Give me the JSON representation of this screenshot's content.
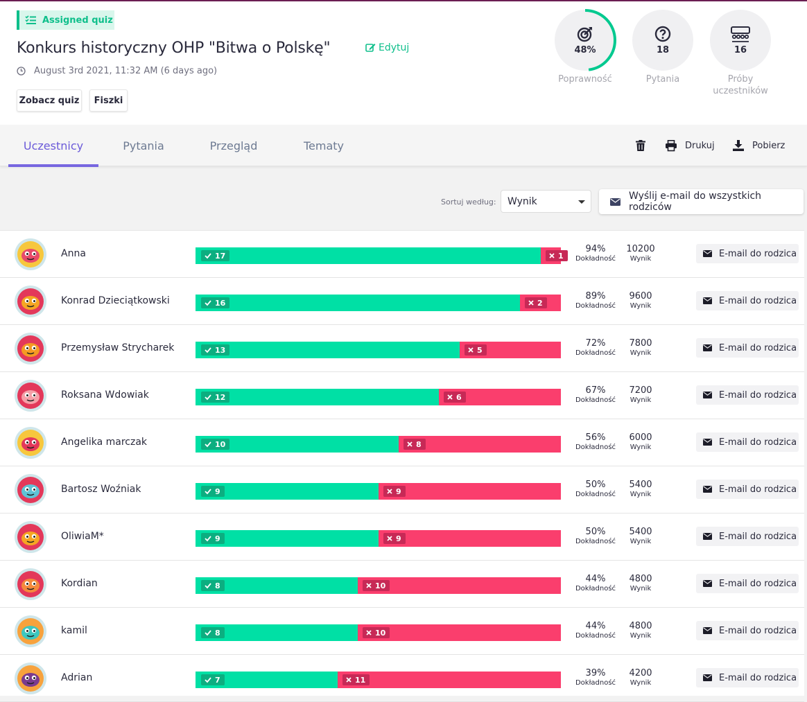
{
  "header": {
    "badge": "Assigned quiz",
    "title": "Konkurs historyczny OHP \"Bitwa o Polskę\"",
    "edit_label": "Edytuj",
    "date": "August 3rd 2021, 11:32 AM (6 days ago)",
    "btn_quiz": "Zobacz quiz",
    "btn_cards": "Fiszki"
  },
  "stats": {
    "accuracy": {
      "value": "48%",
      "fraction": 0.48,
      "label": "Poprawność",
      "color": "#00c98f"
    },
    "questions": {
      "value": "18",
      "label": "Pytania"
    },
    "attempts": {
      "value": "16",
      "label": "Próby uczestników"
    }
  },
  "tabs": [
    "Uczestnicy",
    "Pytania",
    "Przegląd",
    "Tematy"
  ],
  "tools": {
    "print": "Drukuj",
    "download": "Pobierz"
  },
  "sort": {
    "label": "Sortuj według:",
    "value": "Wynik"
  },
  "mail_all": "Wyślij e-mail do wszystkich rodziców",
  "labels": {
    "accuracy": "Dokładność",
    "score": "Wynik",
    "email": "E-mail do rodzica"
  },
  "colors": {
    "correct": "#00e0a5",
    "wrong": "#fa3e6d",
    "accent": "#7766e0",
    "brand_green": "#0ebf8b"
  },
  "participants": [
    {
      "name": "Anna",
      "correct": 17,
      "wrong": 1,
      "accuracy": "94%",
      "score": "10200",
      "avatar": "monster-blue-icon",
      "avatar_bg": "#f7c73d",
      "avatar_fg": "#e84b6a"
    },
    {
      "name": "Konrad Dzieciątkowski",
      "correct": 16,
      "wrong": 2,
      "accuracy": "89%",
      "score": "9600",
      "avatar": "monster-robot-icon",
      "avatar_bg": "#e3385a",
      "avatar_fg": "#f5a623"
    },
    {
      "name": "Przemysław Strycharek",
      "correct": 13,
      "wrong": 5,
      "accuracy": "72%",
      "score": "7800",
      "avatar": "monster-orange-icon",
      "avatar_bg": "#e3385a",
      "avatar_fg": "#f59a23"
    },
    {
      "name": "Roksana Wdowiak",
      "correct": 12,
      "wrong": 6,
      "accuracy": "67%",
      "score": "7200",
      "avatar": "monster-pink-icon",
      "avatar_bg": "#e3385a",
      "avatar_fg": "#f5a0a8"
    },
    {
      "name": "Angelika marczak",
      "correct": 10,
      "wrong": 8,
      "accuracy": "56%",
      "score": "6000",
      "avatar": "monster-red-icon",
      "avatar_bg": "#f7c73d",
      "avatar_fg": "#e3385a"
    },
    {
      "name": "Bartosz Woźniak",
      "correct": 9,
      "wrong": 9,
      "accuracy": "50%",
      "score": "5400",
      "avatar": "monster-shark-icon",
      "avatar_bg": "#e3385a",
      "avatar_fg": "#5ec3d6"
    },
    {
      "name": "OliwiaM*",
      "correct": 9,
      "wrong": 9,
      "accuracy": "50%",
      "score": "5400",
      "avatar": "monster-robot-icon",
      "avatar_bg": "#e3385a",
      "avatar_fg": "#f5a623"
    },
    {
      "name": "Kordian",
      "correct": 8,
      "wrong": 10,
      "accuracy": "44%",
      "score": "4800",
      "avatar": "monster-jar-icon",
      "avatar_bg": "#e3385a",
      "avatar_fg": "#f58a3d"
    },
    {
      "name": "kamil",
      "correct": 8,
      "wrong": 10,
      "accuracy": "44%",
      "score": "4800",
      "avatar": "monster-teal-icon",
      "avatar_bg": "#f7a23d",
      "avatar_fg": "#3ec7c0"
    },
    {
      "name": "Adrian",
      "correct": 7,
      "wrong": 11,
      "accuracy": "39%",
      "score": "4200",
      "avatar": "monster-purple-icon",
      "avatar_bg": "#f7a23d",
      "avatar_fg": "#7a3b8f"
    }
  ]
}
